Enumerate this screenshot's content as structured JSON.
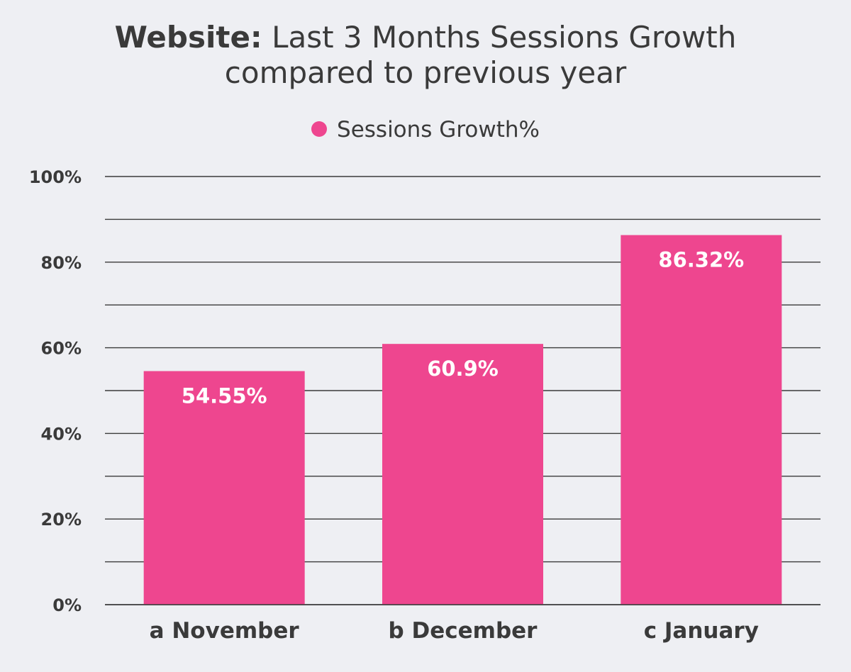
{
  "title": {
    "strong": "Website:",
    "rest": "Last 3 Months Sessions Growth",
    "line2": "compared to previous year"
  },
  "legend": {
    "label": "Sessions Growth%"
  },
  "colors": {
    "bar": "#ee468f",
    "grid": "#3a3a3a",
    "text": "#3a3a3a",
    "value_label": "#ffffff",
    "background": "#eeeff3"
  },
  "chart_data": {
    "type": "bar",
    "categories": [
      "a November",
      "b December",
      "c January"
    ],
    "series": [
      {
        "name": "Sessions Growth%",
        "values": [
          54.55,
          60.9,
          86.32
        ]
      }
    ],
    "data_labels": [
      "54.55%",
      "60.9%",
      "86.32%"
    ],
    "ylim": [
      0,
      100
    ],
    "y_ticks": [
      0,
      20,
      40,
      60,
      80,
      100
    ],
    "y_tick_labels": [
      "0%",
      "20%",
      "40%",
      "60%",
      "80%",
      "100%"
    ],
    "minor_gridlines": [
      10,
      30,
      50,
      70,
      90
    ],
    "grid": true,
    "legend_position": "top-center"
  }
}
